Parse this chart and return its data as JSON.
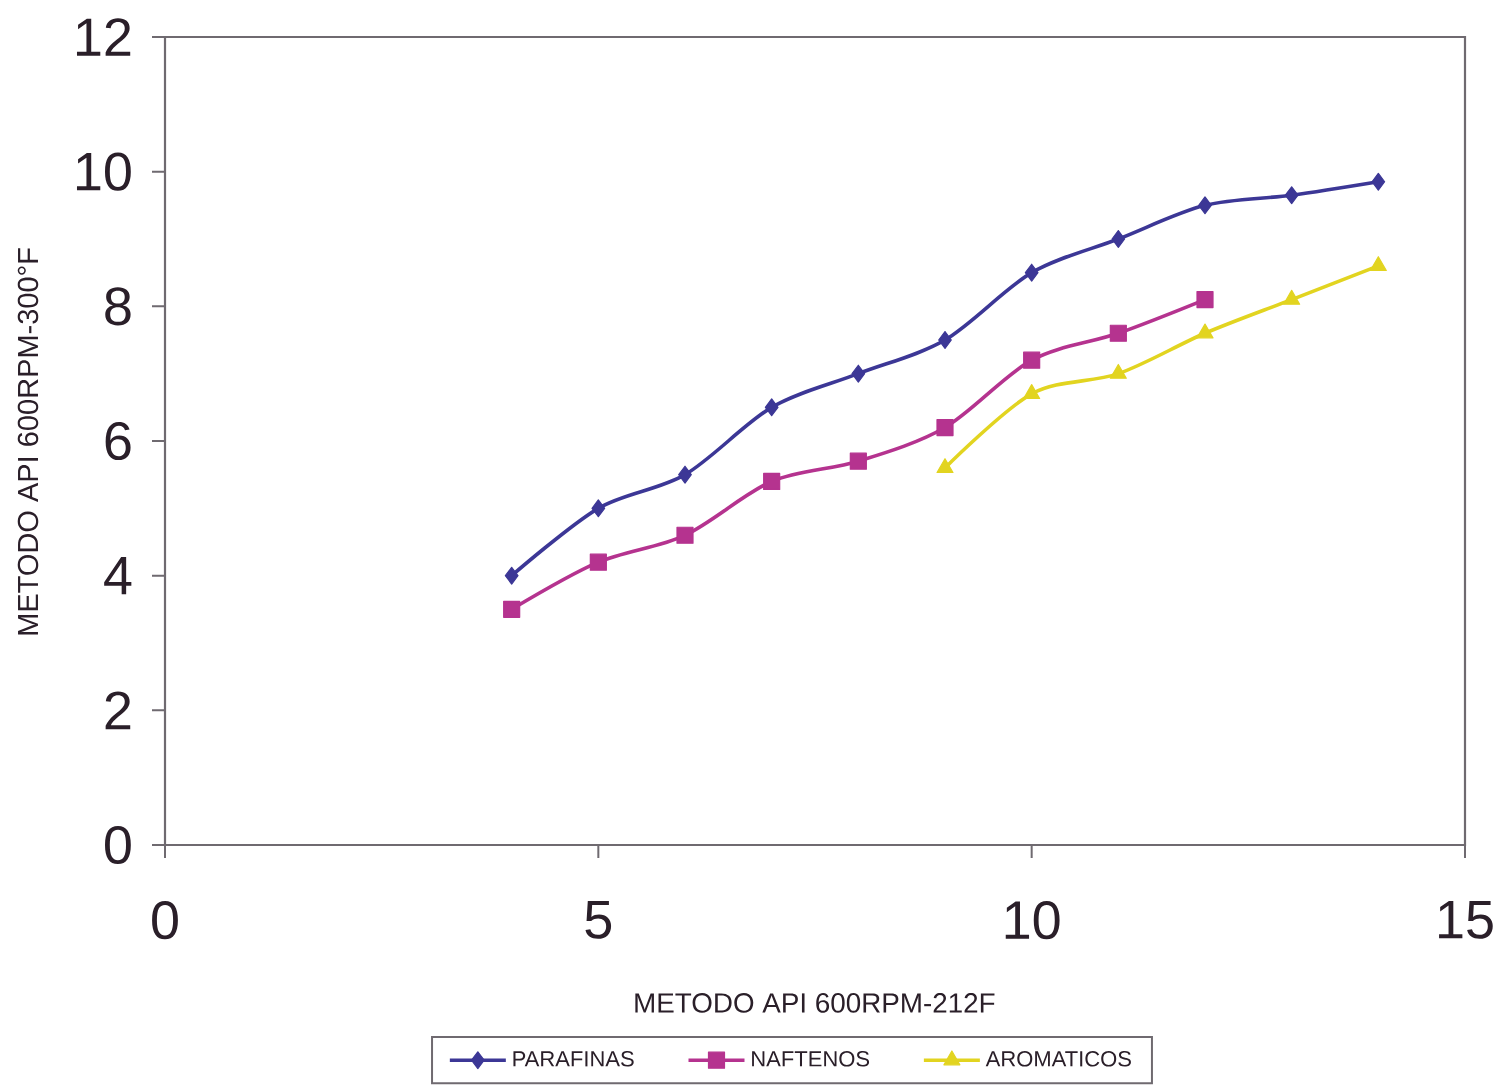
{
  "chart_data": {
    "type": "line",
    "xlabel": "METODO API 600RPM-212F",
    "ylabel": "METODO API 600RPM-300°F",
    "xlim": [
      0,
      15
    ],
    "xticks": [
      0,
      5,
      10,
      15
    ],
    "ylim": [
      0,
      12
    ],
    "yticks": [
      0,
      2,
      4,
      6,
      8,
      10,
      12
    ],
    "legend": "bottom",
    "grid": false,
    "series": [
      {
        "name": "PARAFINAS",
        "color": "#3c3796",
        "marker": "diamond",
        "x": [
          4,
          5,
          6,
          7,
          8,
          9,
          10,
          11,
          12,
          13,
          14
        ],
        "values": [
          4.0,
          5.0,
          5.5,
          6.5,
          7.0,
          7.5,
          8.5,
          9.0,
          9.5,
          9.65,
          9.85
        ]
      },
      {
        "name": "NAFTENOS",
        "color": "#b5338f",
        "marker": "square",
        "x": [
          4,
          5,
          6,
          7,
          8,
          9,
          10,
          11,
          12
        ],
        "values": [
          3.5,
          4.2,
          4.6,
          5.4,
          5.7,
          6.2,
          7.2,
          7.6,
          8.1
        ]
      },
      {
        "name": "AROMATICOS",
        "color": "#e2d420",
        "marker": "triangle",
        "x": [
          9,
          10,
          11,
          12,
          13,
          14
        ],
        "values": [
          5.6,
          6.7,
          7.0,
          7.6,
          8.1,
          8.6
        ]
      }
    ]
  }
}
